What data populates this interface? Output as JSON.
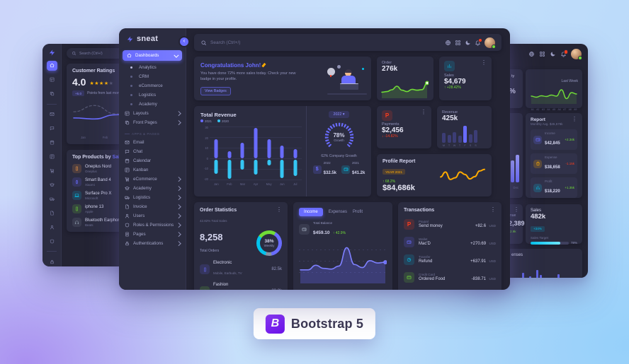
{
  "glyphs": {
    "star": "★",
    "kebab": "⋮",
    "up": "↑",
    "down": "↓",
    "chev_left": "‹",
    "dropdown_arrow": "▾"
  },
  "badge": {
    "letter": "B",
    "label": "Bootstrap 5"
  },
  "left": {
    "search": "Search (Ctrl+/)",
    "ratings": {
      "title": "Customer Ratings",
      "score": "4.0",
      "badge": "+5.0",
      "caption": "Points from last month",
      "x": [
        "Jan",
        "Feb",
        "Mar"
      ],
      "line": [
        2.2,
        2,
        2.8,
        3.2,
        2.6,
        5,
        4.4
      ],
      "line_prev": [
        3.4,
        4.6,
        3,
        2.4,
        4.4,
        2.8,
        3.8
      ]
    },
    "products": {
      "title": "Top Products by",
      "accent": "Sales",
      "items": [
        {
          "name": "Oneplus Nord",
          "brand": "Oneplus"
        },
        {
          "name": "Smart Band 4",
          "brand": "Xiaomi"
        },
        {
          "name": "Surface Pro X",
          "brand": "Microsoft"
        },
        {
          "name": "iphone 13",
          "brand": "Apple"
        },
        {
          "name": "Bluetooth Earphone",
          "brand": "Beats"
        }
      ]
    }
  },
  "center": {
    "logo": "sneat",
    "search": "Search (Ctrl+/)",
    "sidebar": {
      "dashboards": "Dashboards",
      "children": [
        "Analytics",
        "CRM",
        "eCommerce",
        "Logistics",
        "Academy"
      ],
      "layouts": "Layouts",
      "front_pages": "Front Pages",
      "section": "APPS & PAGES",
      "apps": [
        "Email",
        "Chat",
        "Calendar",
        "Kanban",
        "eCommerce",
        "Academy",
        "Logistics",
        "Invoice",
        "Users",
        "Roles & Permissions",
        "Pages",
        "Authentications"
      ]
    },
    "congrats": {
      "title": "Congratulations John!",
      "body": "You have done 72% more sales today. Check your new badge in your profile.",
      "button": "View Badges"
    },
    "order": {
      "label": "Order",
      "value": "276k",
      "points": [
        2.8,
        3.2,
        4.5,
        7,
        4.2,
        3.2,
        4.8,
        4.2,
        4.6,
        9.3
      ]
    },
    "sales": {
      "label": "Sales",
      "value": "$4,679",
      "delta": "+28.42%"
    },
    "total_revenue": {
      "title": "Total Revenue",
      "legend": [
        "2021",
        "2020"
      ],
      "months": [
        "Jan",
        "Feb",
        "Mar",
        "Apr",
        "May",
        "Jun",
        "Jul"
      ],
      "y_ticks": [
        "30",
        "20",
        "10",
        "0",
        "-10",
        "-20"
      ],
      "s2021": [
        18,
        7,
        15,
        29,
        18,
        12,
        9
      ],
      "s2020": [
        -13,
        -18,
        -9,
        -14,
        -5,
        -17,
        -15
      ]
    },
    "growth": {
      "year": "2022",
      "pct": "78%",
      "label": "Growth",
      "caption": "62% Company Growth",
      "stats": [
        {
          "year": "2022",
          "value": "$32.5k"
        },
        {
          "year": "2021",
          "value": "$41.2k"
        }
      ]
    },
    "payments": {
      "label": "Payments",
      "value": "$2,456",
      "delta": "-14.82%"
    },
    "revenue_week": {
      "label": "Revenue",
      "value": "425k",
      "days": [
        "M",
        "T",
        "W",
        "T",
        "F",
        "S",
        "S"
      ],
      "values": [
        55,
        42,
        58,
        40,
        92,
        48,
        68
      ],
      "highlight": 4
    },
    "profile_report": {
      "title": "Profile Report",
      "year_badge": "YEAR 2021",
      "delta": "68.2%",
      "value": "$84,686k",
      "points": [
        5,
        8,
        3.5,
        4.5,
        8,
        6.5,
        3.8,
        5.2,
        8.6,
        9.6
      ]
    },
    "order_stats": {
      "title": "Order Statistics",
      "subtitle": "42.82% Total Sales",
      "total": "8,258",
      "total_label": "Total Orders",
      "donut_pct": "38%",
      "donut_label": "Weekly",
      "rows": [
        {
          "name": "Electronic",
          "desc": "Mobile, Earbuds, TV",
          "value": "82.5k"
        },
        {
          "name": "Fashion",
          "desc": "T-shirt, Jeans, Shoes",
          "value": "23.8k"
        }
      ]
    },
    "finance": {
      "tabs": [
        "Income",
        "Expenses",
        "Profit"
      ],
      "balance_label": "Total Balance",
      "balance": "$459.10",
      "delta": "42.9%",
      "points": [
        3,
        3,
        4.2,
        3.4,
        3.2,
        4,
        8.8,
        4.4,
        3.6,
        5.4,
        4.8,
        5
      ]
    },
    "transactions": {
      "title": "Transactions",
      "rows": [
        {
          "method": "Paypal",
          "desc": "Send money",
          "amount": "+82.6",
          "currency": "USD"
        },
        {
          "method": "Wallet",
          "desc": "Mac'D",
          "amount": "+270.69",
          "currency": "USD"
        },
        {
          "method": "Transfer",
          "desc": "Refund",
          "amount": "+637.91",
          "currency": "USD"
        },
        {
          "method": "Credit Card",
          "desc": "Ordered Food",
          "amount": "-838.71",
          "currency": "USD"
        }
      ]
    }
  },
  "right": {
    "activity": {
      "period": "Last Week",
      "labels": [
        "A1",
        "A2",
        "A3",
        "A4",
        "A5",
        "A6",
        "A7",
        "A8",
        "A9"
      ],
      "points": [
        3.2,
        2.6,
        3.4,
        3,
        3.8,
        3.2,
        6.8,
        1.8,
        5.2,
        4.4
      ]
    },
    "report": {
      "title": "Report",
      "subtitle": "Monthly Avg. $45,578k",
      "rows": [
        {
          "label": "Income",
          "value": "$42,845",
          "delta": "+2.34k"
        },
        {
          "label": "Expense",
          "value": "$38,658",
          "delta": "-1.15k"
        },
        {
          "label": "Profit",
          "value": "$18,220",
          "delta": "+1.35k"
        }
      ]
    },
    "sales_target": {
      "title": "Sales",
      "value": "482k",
      "badge": "+34%",
      "target_label": "Sales Target",
      "pct": "78%"
    },
    "fragments": {
      "card1_title": "ty",
      "card1_value": "%",
      "month": "Dec",
      "card3_label": "nue",
      "card3_value": "2,389",
      "card3_delta": "2.9k",
      "bottom_label": "enses"
    },
    "dec_bars": [
      85,
      60,
      75
    ],
    "bottom_bars": [
      18,
      30,
      12,
      50,
      22,
      38,
      14,
      60,
      44,
      20,
      12,
      34,
      18,
      46,
      10,
      26
    ]
  },
  "colors": {
    "primary": "#696cff",
    "info": "#03c3ec",
    "success": "#71dd37",
    "danger": "#ff3e1d",
    "warning": "#ffab00",
    "dark_bg": "#232333",
    "card_bg": "#2b2c40"
  }
}
